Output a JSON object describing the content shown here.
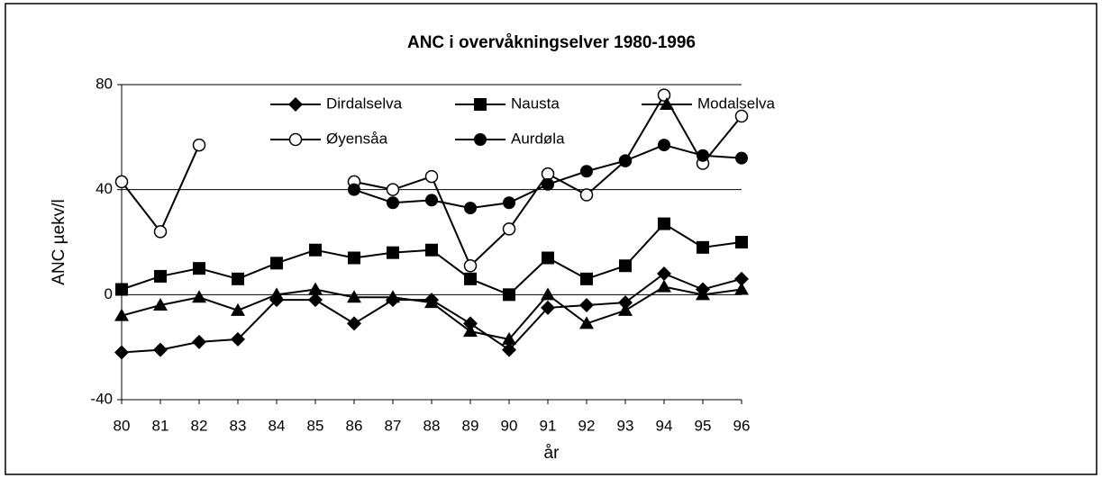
{
  "chart_data": {
    "type": "line",
    "title": "ANC i overvåkningselver 1980-1996",
    "xlabel": "år",
    "ylabel": "ANC µekv/l",
    "categories": [
      "80",
      "81",
      "82",
      "83",
      "84",
      "85",
      "86",
      "87",
      "88",
      "89",
      "90",
      "91",
      "92",
      "93",
      "94",
      "95",
      "96"
    ],
    "ylim": [
      -40,
      80
    ],
    "yticks": [
      -40,
      0,
      40,
      80
    ],
    "grid": true,
    "series": [
      {
        "name": "Dirdalselva",
        "color": "#000000",
        "marker": "diamond",
        "values": [
          -22,
          -21,
          -18,
          -17,
          -2,
          -2,
          -11,
          -2,
          -2,
          -11,
          -21,
          -5,
          -4,
          -3,
          8,
          2,
          6
        ]
      },
      {
        "name": "Nausta",
        "color": "#000000",
        "marker": "square",
        "values": [
          2,
          7,
          10,
          6,
          12,
          17,
          14,
          16,
          17,
          6,
          0,
          14,
          6,
          11,
          27,
          18,
          20
        ]
      },
      {
        "name": "Modalselva",
        "color": "#000000",
        "marker": "triangle",
        "values": [
          -8,
          -4,
          -1,
          -6,
          0,
          2,
          -1,
          -1,
          -3,
          -14,
          -17,
          0,
          -11,
          -6,
          3,
          0,
          2
        ]
      },
      {
        "name": "Øyensåa",
        "color": "#000000",
        "marker": "open-circle",
        "values": [
          43,
          24,
          57,
          null,
          null,
          null,
          43,
          40,
          45,
          11,
          25,
          46,
          38,
          51,
          76,
          50,
          68
        ]
      },
      {
        "name": "Aurdøla",
        "color": "#000000",
        "marker": "circle",
        "values": [
          null,
          null,
          null,
          null,
          null,
          null,
          40,
          35,
          36,
          33,
          35,
          42,
          47,
          51,
          57,
          53,
          52
        ]
      }
    ]
  }
}
